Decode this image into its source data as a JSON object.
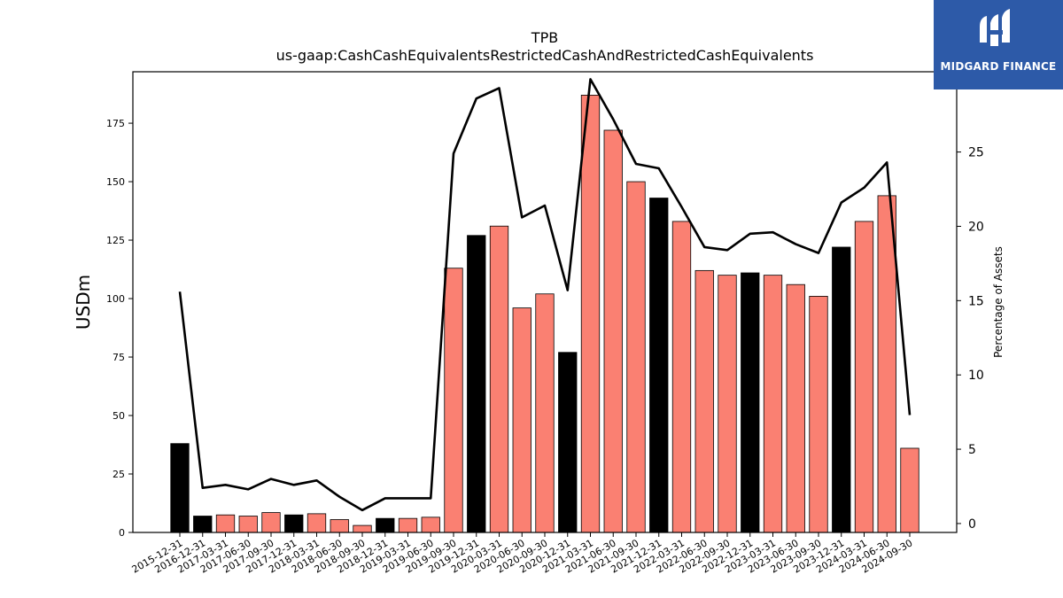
{
  "chart_data": {
    "type": "bar",
    "title": "TPB",
    "subtitle": "us-gaap:CashCashEquivalentsRestrictedCashAndRestrictedCashEquivalents",
    "ylabel": "USDm",
    "y2label": "Percentage of Assets",
    "ylim": [
      0,
      197
    ],
    "y2lim": [
      -0.6,
      30.4
    ],
    "yticks": [
      0,
      25,
      50,
      75,
      100,
      125,
      150,
      175
    ],
    "y2ticks": [
      0,
      5,
      10,
      15,
      20,
      25,
      30
    ],
    "categories": [
      "2015-12-31",
      "2016-12-31",
      "2017-03-31",
      "2017-06-30",
      "2017-09-30",
      "2017-12-31",
      "2018-03-31",
      "2018-06-30",
      "2018-09-30",
      "2018-12-31",
      "2019-03-31",
      "2019-06-30",
      "2019-09-30",
      "2019-12-31",
      "2020-03-31",
      "2020-06-30",
      "2020-09-30",
      "2020-12-31",
      "2021-03-31",
      "2021-06-30",
      "2021-09-30",
      "2021-12-31",
      "2022-03-31",
      "2022-06-30",
      "2022-09-30",
      "2022-12-31",
      "2023-03-31",
      "2023-06-30",
      "2023-09-30",
      "2023-12-31",
      "2024-03-31",
      "2024-06-30",
      "2024-09-30"
    ],
    "series": [
      {
        "type": "bar",
        "values": [
          38,
          7,
          7.5,
          7,
          8.5,
          7.5,
          8,
          5.5,
          3,
          6,
          6,
          6.5,
          113,
          127,
          131,
          96,
          102,
          77,
          187,
          172,
          150,
          143,
          133,
          112,
          110,
          111,
          110,
          106,
          101,
          122,
          133,
          144,
          36
        ],
        "annual": [
          true,
          true,
          false,
          false,
          false,
          true,
          false,
          false,
          false,
          true,
          false,
          false,
          false,
          true,
          false,
          false,
          false,
          true,
          false,
          false,
          false,
          true,
          false,
          false,
          false,
          true,
          false,
          false,
          false,
          true,
          false,
          false,
          false
        ]
      },
      {
        "type": "line",
        "values": [
          15.6,
          2.4,
          2.6,
          2.3,
          3.0,
          2.6,
          2.9,
          1.8,
          0.9,
          1.7,
          1.7,
          1.7,
          24.9,
          28.6,
          29.3,
          20.6,
          21.4,
          15.7,
          29.9,
          27.2,
          24.2,
          23.9,
          21.3,
          18.6,
          18.4,
          19.5,
          19.6,
          18.8,
          18.2,
          21.6,
          22.6,
          24.3,
          7.3
        ]
      }
    ],
    "colors": {
      "annual_bar": "#000000",
      "quarter_bar": "#fa8072",
      "line": "#000000"
    },
    "grid": false
  },
  "logo": {
    "text": "MIDGARD FINANCE",
    "background": "#2d5aa8"
  }
}
